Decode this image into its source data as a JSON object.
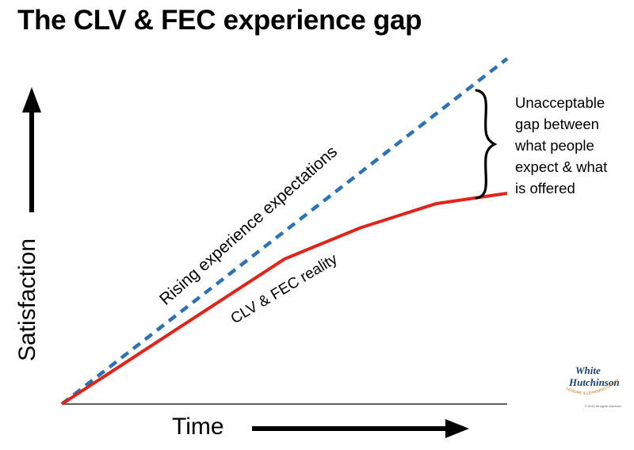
{
  "title": "The CLV & FEC experience gap",
  "chart_data": {
    "type": "line",
    "title": "The CLV & FEC experience gap",
    "xlabel": "Time",
    "ylabel": "Satisfaction",
    "grid": false,
    "series": [
      {
        "name": "Rising experience expectations",
        "style": "dashed",
        "color": "#2c72b5",
        "x": [
          0,
          100
        ],
        "y": [
          0,
          100
        ]
      },
      {
        "name": "CLV & FEC reality",
        "style": "solid",
        "color": "#e2231a",
        "x": [
          0,
          50,
          67,
          84,
          100
        ],
        "y": [
          0,
          42,
          51,
          58,
          61
        ]
      }
    ],
    "annotation": {
      "lines": [
        "Unacceptable",
        "gap between",
        "what people",
        "expect & what",
        "is offered"
      ]
    }
  },
  "logo": {
    "line1": "White",
    "line2": "Hutchinson",
    "arc_text": "LEISURE & LEARNING GROUP",
    "copyright": "© 2011 All rights reserved"
  }
}
